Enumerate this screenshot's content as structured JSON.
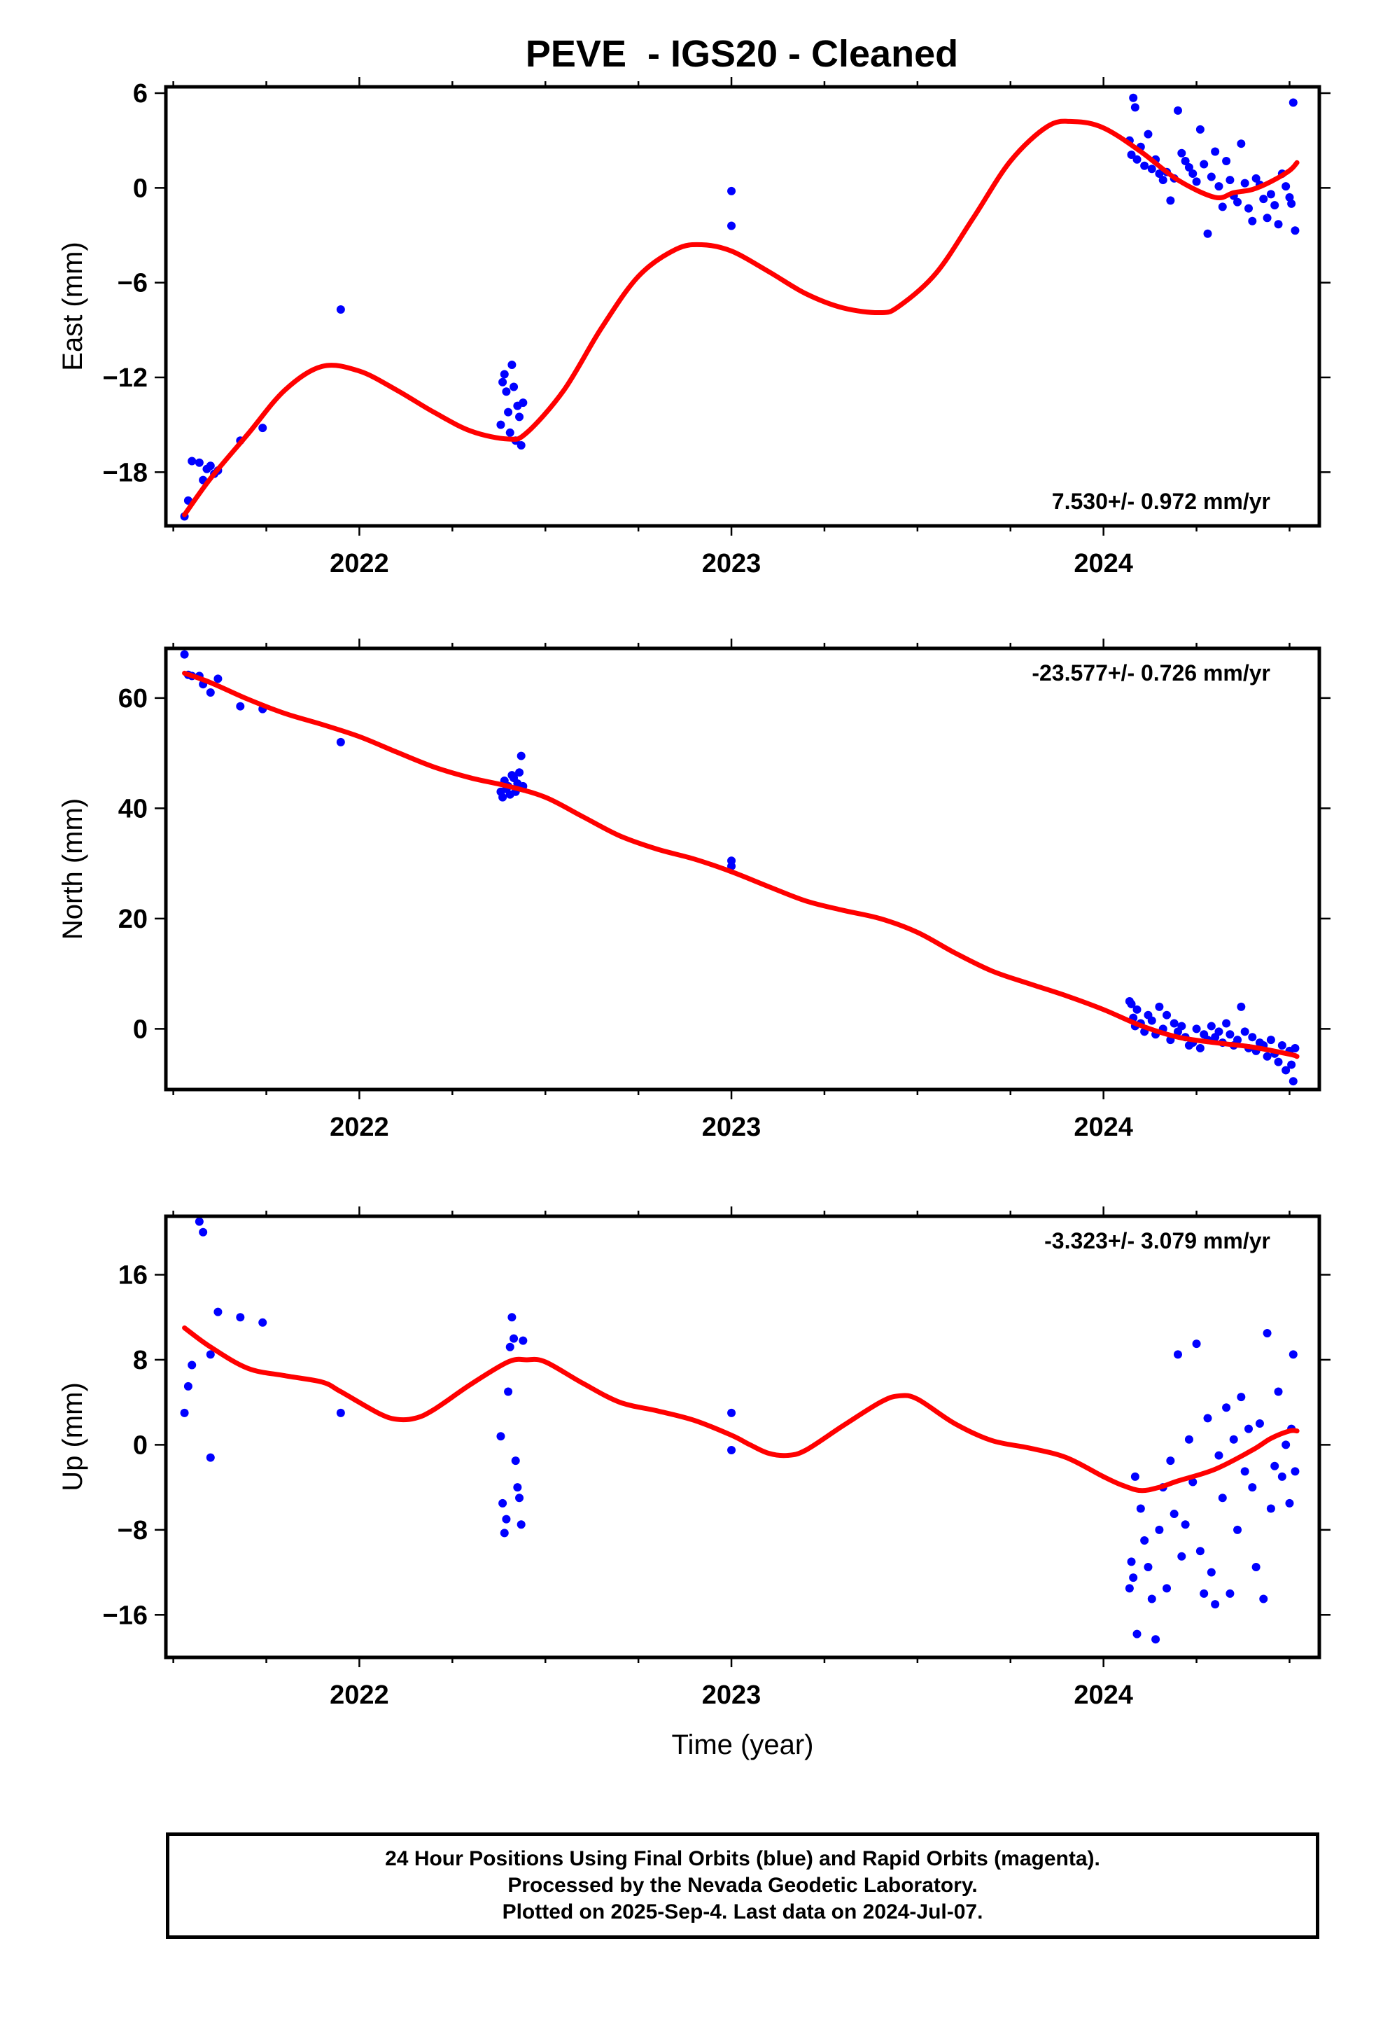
{
  "figure_title": "PEVE  - IGS20 - Cleaned",
  "footer": {
    "line1": "24 Hour Positions Using Final Orbits (blue) and Rapid Orbits (magenta).",
    "line2": "Processed by the Nevada Geodetic Laboratory.",
    "line3": "Plotted on 2025-Sep-4. Last data on 2024-Jul-07."
  },
  "colors": {
    "points": "#0000ff",
    "fit": "#ff0000",
    "axes": "#000000"
  },
  "chart_data": [
    {
      "type": "scatter",
      "ylabel": "East (mm)",
      "xlabel": "",
      "xlim": [
        2021.48,
        2024.58
      ],
      "ylim": [
        -21.4,
        6.4
      ],
      "yticks": [
        -18,
        -12,
        -6,
        0,
        6
      ],
      "xticks": [
        2022,
        2023,
        2024
      ],
      "rate_label": "7.530+/- 0.972 mm/yr",
      "rate_position": "bottom-right",
      "series": [
        {
          "kind": "points",
          "x": [
            2021.53,
            2021.54,
            2021.55,
            2021.57,
            2021.58,
            2021.59,
            2021.6,
            2021.61,
            2021.62,
            2021.68,
            2021.74,
            2021.95,
            2022.38,
            2022.385,
            2022.39,
            2022.395,
            2022.4,
            2022.405,
            2022.41,
            2022.415,
            2022.42,
            2022.425,
            2022.43,
            2022.435,
            2022.44,
            2023.0,
            2023.0,
            2024.07,
            2024.075,
            2024.08,
            2024.085,
            2024.09,
            2024.1,
            2024.11,
            2024.12,
            2024.13,
            2024.14,
            2024.15,
            2024.16,
            2024.17,
            2024.18,
            2024.19,
            2024.2,
            2024.21,
            2024.22,
            2024.23,
            2024.24,
            2024.25,
            2024.26,
            2024.27,
            2024.28,
            2024.29,
            2024.3,
            2024.31,
            2024.32,
            2024.33,
            2024.34,
            2024.35,
            2024.36,
            2024.37,
            2024.38,
            2024.39,
            2024.4,
            2024.41,
            2024.42,
            2024.43,
            2024.44,
            2024.45,
            2024.46,
            2024.47,
            2024.48,
            2024.49,
            2024.5,
            2024.505,
            2024.51,
            2024.515
          ],
          "y": [
            -20.8,
            -19.8,
            -17.3,
            -17.4,
            -18.5,
            -17.8,
            -17.6,
            -18.1,
            -17.9,
            -16.0,
            -15.2,
            -7.7,
            -15.0,
            -12.3,
            -11.8,
            -12.9,
            -14.2,
            -15.5,
            -11.2,
            -12.6,
            -16.0,
            -13.8,
            -14.5,
            -16.3,
            -13.6,
            -0.2,
            -2.4,
            3.0,
            2.1,
            5.7,
            5.1,
            1.8,
            2.6,
            1.4,
            3.4,
            1.2,
            1.8,
            0.9,
            0.5,
            1.0,
            -0.8,
            0.6,
            4.9,
            2.2,
            1.7,
            1.3,
            0.9,
            0.4,
            3.7,
            1.5,
            -2.9,
            0.7,
            2.3,
            0.1,
            -1.2,
            1.7,
            0.5,
            -0.5,
            -0.9,
            2.8,
            0.3,
            -1.3,
            -2.1,
            0.6,
            0.2,
            -0.7,
            -1.9,
            -0.4,
            -1.1,
            -2.3,
            0.9,
            0.1,
            -0.6,
            -1.0,
            5.4,
            -2.7
          ]
        },
        {
          "kind": "fit",
          "x": [
            2021.53,
            2021.6,
            2021.7,
            2021.8,
            2021.9,
            2022.0,
            2022.1,
            2022.2,
            2022.3,
            2022.4,
            2022.45,
            2022.55,
            2022.65,
            2022.75,
            2022.85,
            2022.92,
            2023.0,
            2023.1,
            2023.2,
            2023.3,
            2023.4,
            2023.45,
            2023.55,
            2023.65,
            2023.75,
            2023.85,
            2023.92,
            2024.0,
            2024.1,
            2024.2,
            2024.3,
            2024.35,
            2024.4,
            2024.45,
            2024.5,
            2024.52
          ],
          "y": [
            -20.7,
            -18.4,
            -15.6,
            -12.8,
            -11.3,
            -11.6,
            -12.8,
            -14.2,
            -15.4,
            -15.9,
            -15.5,
            -12.8,
            -8.9,
            -5.6,
            -3.9,
            -3.6,
            -4.0,
            -5.3,
            -6.7,
            -7.6,
            -7.9,
            -7.5,
            -5.4,
            -1.9,
            1.7,
            3.9,
            4.2,
            3.8,
            2.3,
            0.5,
            -0.6,
            -0.3,
            -0.1,
            0.4,
            1.1,
            1.6
          ]
        }
      ]
    },
    {
      "type": "scatter",
      "ylabel": "North (mm)",
      "xlabel": "",
      "xlim": [
        2021.48,
        2024.58
      ],
      "ylim": [
        -11,
        69
      ],
      "yticks": [
        0,
        20,
        40,
        60
      ],
      "xticks": [
        2022,
        2023,
        2024
      ],
      "rate_label": "-23.577+/- 0.726 mm/yr",
      "rate_position": "top-right",
      "series": [
        {
          "kind": "points",
          "x": [
            2021.53,
            2021.54,
            2021.55,
            2021.57,
            2021.58,
            2021.6,
            2021.62,
            2021.68,
            2021.74,
            2021.95,
            2022.38,
            2022.385,
            2022.39,
            2022.395,
            2022.4,
            2022.405,
            2022.41,
            2022.415,
            2022.42,
            2022.425,
            2022.43,
            2022.435,
            2022.44,
            2023.0,
            2023.0,
            2024.07,
            2024.075,
            2024.08,
            2024.085,
            2024.09,
            2024.1,
            2024.11,
            2024.12,
            2024.13,
            2024.14,
            2024.15,
            2024.16,
            2024.17,
            2024.18,
            2024.19,
            2024.2,
            2024.21,
            2024.22,
            2024.23,
            2024.24,
            2024.25,
            2024.26,
            2024.27,
            2024.28,
            2024.29,
            2024.3,
            2024.31,
            2024.32,
            2024.33,
            2024.34,
            2024.35,
            2024.36,
            2024.37,
            2024.38,
            2024.39,
            2024.4,
            2024.41,
            2024.42,
            2024.43,
            2024.44,
            2024.45,
            2024.46,
            2024.47,
            2024.48,
            2024.49,
            2024.5,
            2024.505,
            2024.51,
            2024.515
          ],
          "y": [
            67.9,
            64.2,
            64.0,
            64.0,
            62.5,
            61.0,
            63.5,
            58.5,
            58.0,
            52.0,
            43.0,
            42.0,
            45.0,
            43.5,
            44.0,
            42.5,
            46.0,
            45.5,
            43.0,
            44.5,
            46.5,
            49.5,
            44.0,
            30.5,
            29.5,
            5.0,
            4.5,
            2.0,
            0.5,
            3.5,
            1.0,
            -0.5,
            2.5,
            1.5,
            -1.0,
            4.0,
            0.0,
            2.5,
            -2.0,
            1.0,
            -0.5,
            0.5,
            -1.5,
            -3.0,
            -2.5,
            0.0,
            -3.5,
            -1.0,
            -2.0,
            0.5,
            -1.5,
            -0.5,
            -2.5,
            1.0,
            -1.0,
            -3.0,
            -2.0,
            4.0,
            -0.5,
            -3.5,
            -1.5,
            -4.0,
            -2.5,
            -3.0,
            -5.0,
            -2.0,
            -4.5,
            -6.0,
            -3.0,
            -7.5,
            -4.0,
            -6.5,
            -9.5,
            -3.5
          ]
        },
        {
          "kind": "fit",
          "x": [
            2021.53,
            2021.6,
            2021.7,
            2021.8,
            2021.9,
            2022.0,
            2022.1,
            2022.2,
            2022.3,
            2022.4,
            2022.5,
            2022.6,
            2022.7,
            2022.8,
            2022.9,
            2023.0,
            2023.1,
            2023.2,
            2023.3,
            2023.4,
            2023.5,
            2023.6,
            2023.7,
            2023.8,
            2023.9,
            2024.0,
            2024.1,
            2024.2,
            2024.3,
            2024.4,
            2024.5,
            2024.52
          ],
          "y": [
            64.5,
            62.8,
            59.8,
            57.2,
            55.2,
            53.0,
            50.2,
            47.5,
            45.5,
            44.0,
            42.0,
            38.5,
            35.0,
            32.6,
            30.8,
            28.5,
            25.8,
            23.2,
            21.5,
            20.0,
            17.5,
            13.8,
            10.5,
            8.2,
            6.0,
            3.5,
            0.6,
            -1.5,
            -2.5,
            -3.3,
            -4.6,
            -5.0
          ]
        }
      ]
    },
    {
      "type": "scatter",
      "ylabel": "Up (mm)",
      "xlabel": "Time (year)",
      "xlim": [
        2021.48,
        2024.58
      ],
      "ylim": [
        -20,
        21.5
      ],
      "yticks": [
        -16,
        -8,
        0,
        8,
        16
      ],
      "xticks": [
        2022,
        2023,
        2024
      ],
      "rate_label": "-3.323+/- 3.079 mm/yr",
      "rate_position": "top-right",
      "series": [
        {
          "kind": "points",
          "x": [
            2021.53,
            2021.54,
            2021.55,
            2021.57,
            2021.58,
            2021.6,
            2021.62,
            2021.6,
            2021.68,
            2021.74,
            2021.95,
            2022.38,
            2022.385,
            2022.39,
            2022.395,
            2022.4,
            2022.405,
            2022.41,
            2022.415,
            2022.42,
            2022.425,
            2022.43,
            2022.435,
            2022.44,
            2023.0,
            2023.0,
            2024.07,
            2024.075,
            2024.08,
            2024.085,
            2024.09,
            2024.1,
            2024.11,
            2024.12,
            2024.13,
            2024.14,
            2024.15,
            2024.16,
            2024.17,
            2024.18,
            2024.19,
            2024.2,
            2024.21,
            2024.22,
            2024.23,
            2024.24,
            2024.25,
            2024.26,
            2024.27,
            2024.28,
            2024.29,
            2024.3,
            2024.31,
            2024.32,
            2024.33,
            2024.34,
            2024.35,
            2024.36,
            2024.37,
            2024.38,
            2024.39,
            2024.4,
            2024.41,
            2024.42,
            2024.43,
            2024.44,
            2024.45,
            2024.46,
            2024.47,
            2024.48,
            2024.49,
            2024.5,
            2024.505,
            2024.51,
            2024.515
          ],
          "y": [
            3.0,
            5.5,
            7.5,
            21.0,
            20.0,
            8.5,
            12.5,
            -1.2,
            12.0,
            11.5,
            3.0,
            0.8,
            -5.5,
            -8.3,
            -7.0,
            5.0,
            9.2,
            12.0,
            10.0,
            -1.5,
            -4.0,
            -5.0,
            -7.5,
            9.8,
            3.0,
            -0.5,
            -13.5,
            -11.0,
            -12.5,
            -3.0,
            -17.8,
            -6.0,
            -9.0,
            -11.5,
            -14.5,
            -18.3,
            -8.0,
            -4.0,
            -13.5,
            -1.5,
            -6.5,
            8.5,
            -10.5,
            -7.5,
            0.5,
            -3.5,
            9.5,
            -10.0,
            -14.0,
            2.5,
            -12.0,
            -15.0,
            -1.0,
            -5.0,
            3.5,
            -14.0,
            0.5,
            -8.0,
            4.5,
            -2.5,
            1.5,
            -4.0,
            -11.5,
            2.0,
            -14.5,
            10.5,
            -6.0,
            -2.0,
            5.0,
            -3.0,
            0.0,
            -5.5,
            1.5,
            8.5,
            -2.5
          ]
        },
        {
          "kind": "fit",
          "x": [
            2021.53,
            2021.6,
            2021.7,
            2021.8,
            2021.9,
            2021.95,
            2022.05,
            2022.1,
            2022.15,
            2022.2,
            2022.3,
            2022.4,
            2022.45,
            2022.5,
            2022.6,
            2022.7,
            2022.8,
            2022.9,
            2023.0,
            2023.05,
            2023.1,
            2023.15,
            2023.2,
            2023.3,
            2023.4,
            2023.45,
            2023.5,
            2023.6,
            2023.7,
            2023.8,
            2023.9,
            2024.0,
            2024.05,
            2024.1,
            2024.15,
            2024.2,
            2024.3,
            2024.4,
            2024.45,
            2024.5,
            2024.52
          ],
          "y": [
            11.0,
            9.2,
            7.2,
            6.5,
            5.9,
            5.0,
            3.0,
            2.4,
            2.5,
            3.3,
            5.7,
            7.8,
            8.0,
            7.8,
            5.8,
            4.0,
            3.2,
            2.3,
            0.9,
            0.0,
            -0.8,
            -1.0,
            -0.5,
            1.8,
            4.0,
            4.6,
            4.3,
            2.0,
            0.4,
            -0.3,
            -1.2,
            -3.0,
            -3.8,
            -4.3,
            -4.0,
            -3.4,
            -2.3,
            -0.5,
            0.6,
            1.3,
            1.3
          ]
        }
      ]
    }
  ]
}
